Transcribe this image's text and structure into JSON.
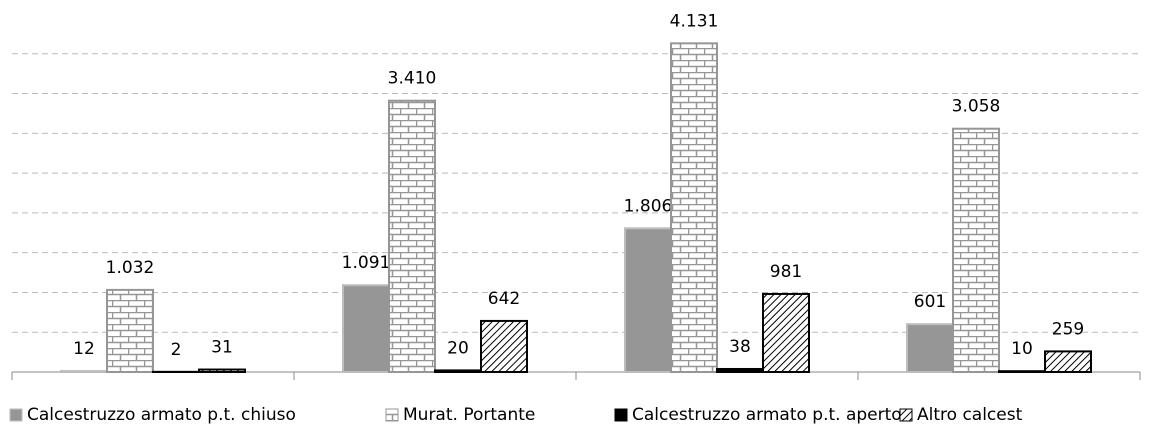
{
  "chart_data": {
    "type": "bar",
    "categories": [
      null,
      null,
      null,
      null
    ],
    "series": [
      {
        "name": "Calcestruzzo armato p.t. chiuso",
        "color": "#969696",
        "pattern": "solid",
        "values": [
          12,
          1091,
          1806,
          601
        ],
        "value_labels": [
          "12",
          "1.091",
          "1.806",
          "601"
        ]
      },
      {
        "name": "Murat. Portante",
        "color": "#969696",
        "pattern": "brick",
        "values": [
          1032,
          3410,
          4131,
          3058
        ],
        "value_labels": [
          "1.032",
          "3.410",
          "4.131",
          "3.058"
        ]
      },
      {
        "name": "Calcestruzzo armato p.t. aperto",
        "color": "#000000",
        "pattern": "solid",
        "values": [
          2,
          20,
          38,
          10
        ]
      },
      {
        "name": "Altro calcest",
        "color": "#000000",
        "pattern": "hatch",
        "values": [
          31,
          642,
          981,
          259
        ]
      }
    ],
    "ylim": [
      0,
      4500
    ],
    "yticks": [
      0,
      500,
      1000,
      1500,
      2000,
      2500,
      3000,
      3500,
      4000
    ],
    "grid": true,
    "legend": "bottom"
  }
}
